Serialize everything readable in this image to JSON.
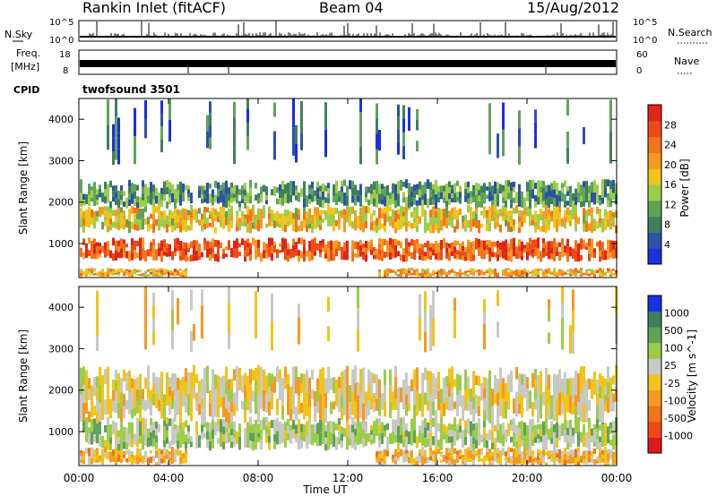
{
  "header": {
    "station": "Rankin Inlet (fitACF)",
    "beam": "Beam 04",
    "date": "15/Aug/2012"
  },
  "top_panels": {
    "nsky_label": "N.Sky",
    "nsky_ticks": [
      "10^5",
      "10^0"
    ],
    "nsearch_label": "N.Search",
    "nsearch_ticks": [
      "10^5",
      "10^0"
    ],
    "freq_label_1": "Freq.",
    "freq_label_2": "[MHz]",
    "freq_ticks": [
      "18",
      "8"
    ],
    "nave_label": "Nave",
    "nave_ticks": [
      "60",
      "0"
    ],
    "cpid_label": "CPID",
    "cpid_value": "twofsound 3501"
  },
  "chart_data": [
    {
      "type": "heatmap",
      "title": "",
      "xlabel": "",
      "ylabel": "Slant Range [km]",
      "x_ticks": [
        "00:00",
        "04:00",
        "08:00",
        "12:00",
        "16:00",
        "20:00",
        "00:00"
      ],
      "y_ticks": [
        1000,
        2000,
        3000,
        4000
      ],
      "ylim": [
        180,
        4500
      ],
      "colorbar": {
        "label": "Power [dB]",
        "ticks": [
          "28",
          "24",
          "20",
          "16",
          "12",
          "8",
          "4"
        ],
        "range": [
          0,
          32
        ],
        "colors": [
          "#1a2fe0",
          "#2d52a8",
          "#3f7f5e",
          "#5fa35a",
          "#9ccd49",
          "#f0c419",
          "#f49a21",
          "#f07418",
          "#ee4a18",
          "#e02418"
        ]
      },
      "bands": [
        {
          "ymin": 200,
          "ymax": 400,
          "value": 20
        },
        {
          "ymin": 600,
          "ymax": 1100,
          "value": 26
        },
        {
          "ymin": 1300,
          "ymax": 1900,
          "value": 18
        },
        {
          "ymin": 1900,
          "ymax": 2500,
          "value": 10
        },
        {
          "ymin": 3000,
          "ymax": 4500,
          "value": 6
        }
      ]
    },
    {
      "type": "heatmap",
      "title": "",
      "xlabel": "Time UT",
      "ylabel": "Slant Range [km]",
      "x_ticks": [
        "00:00",
        "04:00",
        "08:00",
        "12:00",
        "16:00",
        "20:00",
        "00:00"
      ],
      "y_ticks": [
        1000,
        2000,
        3000,
        4000
      ],
      "ylim": [
        180,
        4500
      ],
      "colorbar": {
        "label": "Velocity [m s^-1]",
        "ticks": [
          "1000",
          "500",
          "100",
          "25",
          "-25",
          "-100",
          "-500",
          "-1000"
        ],
        "range": [
          -1200,
          1200
        ],
        "colors": [
          "#e0181a",
          "#ee4a18",
          "#f07418",
          "#f49a21",
          "#f0c419",
          "#c8c8c4",
          "#9ccd49",
          "#5fa35a",
          "#3f7f5e",
          "#1a2fe0"
        ]
      },
      "bands": [
        {
          "ymin": 200,
          "ymax": 600,
          "value": -200
        },
        {
          "ymin": 600,
          "ymax": 1300,
          "value": 300
        },
        {
          "ymin": 1300,
          "ymax": 2500,
          "value": 0
        },
        {
          "ymin": 3000,
          "ymax": 4500,
          "value": -50
        }
      ]
    }
  ]
}
